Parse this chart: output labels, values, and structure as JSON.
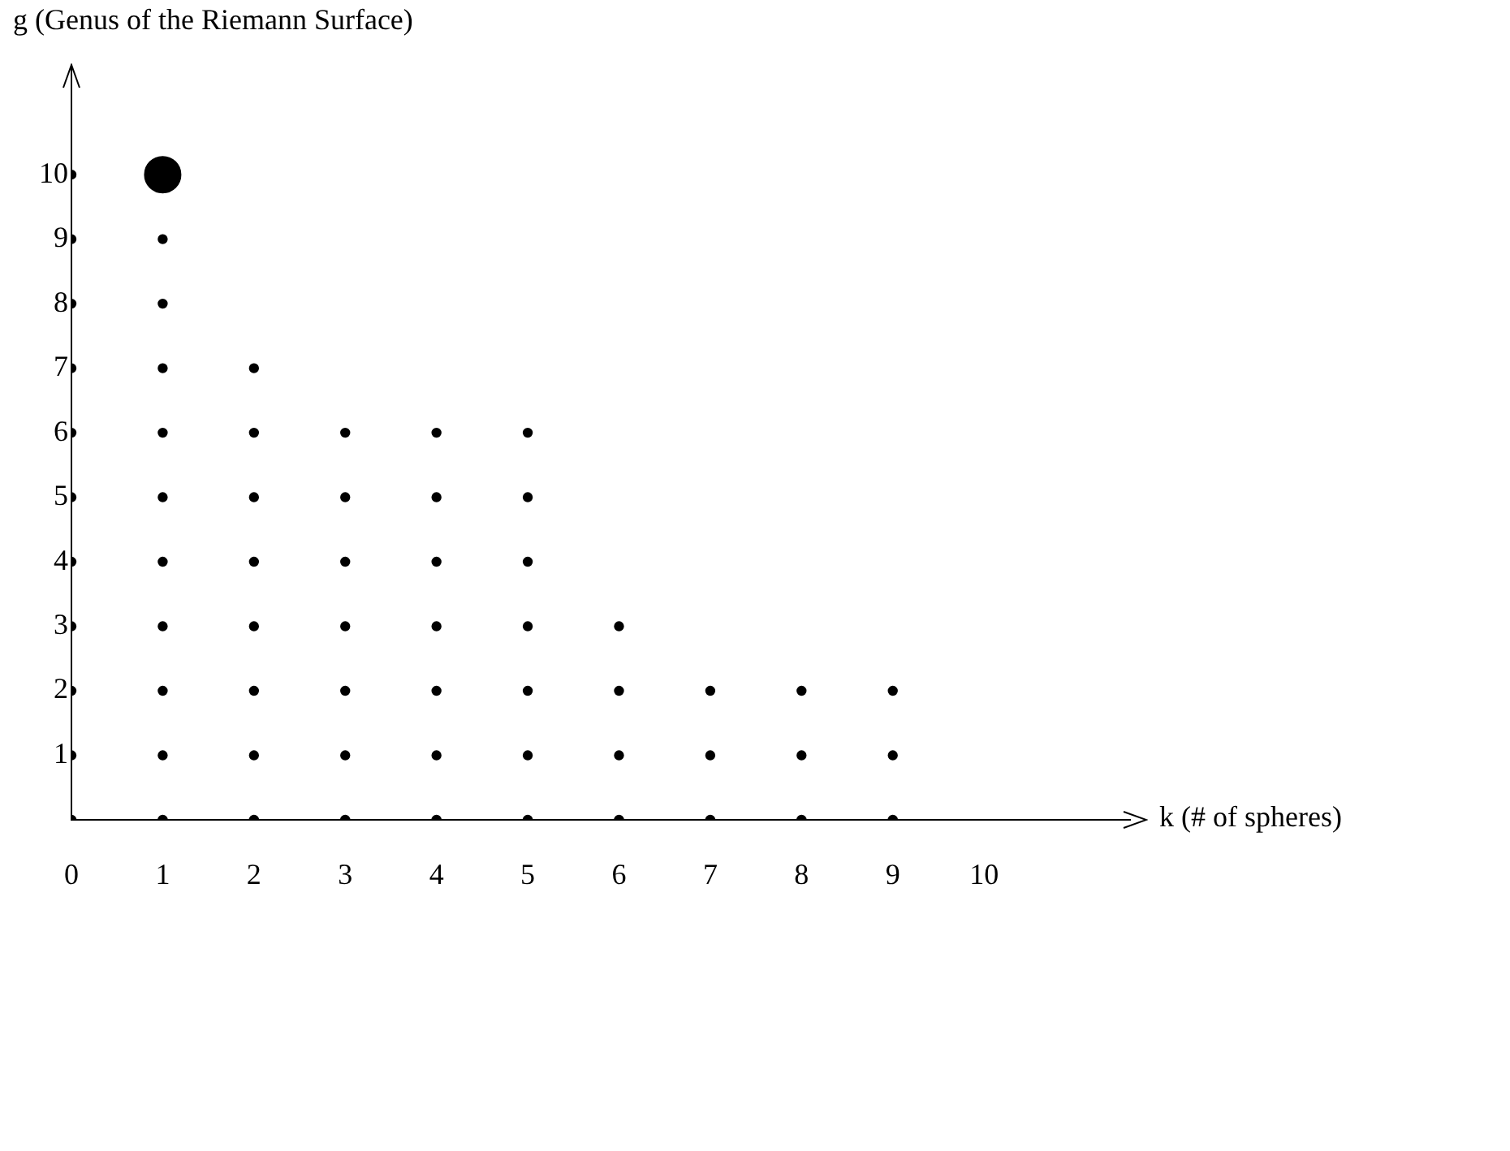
{
  "chart_data": {
    "type": "scatter",
    "xlabel": "k (# of spheres)",
    "ylabel": "g (Genus of the Riemann Surface)",
    "xlim": [
      0,
      11.6
    ],
    "ylim": [
      0,
      11.7
    ],
    "xticks": [
      0,
      1,
      2,
      3,
      4,
      5,
      6,
      7,
      8,
      9,
      10
    ],
    "yticks": [
      1,
      2,
      3,
      4,
      5,
      6,
      7,
      8,
      9,
      10
    ],
    "grid": false,
    "legend": false,
    "marker": "circle",
    "series": [
      {
        "color": "#000000",
        "x": [
          0,
          0,
          0,
          0,
          0,
          0,
          0,
          0,
          0,
          0,
          0,
          1,
          1,
          1,
          1,
          1,
          1,
          1,
          1,
          1,
          1,
          2,
          2,
          2,
          2,
          2,
          2,
          2,
          2,
          3,
          3,
          3,
          3,
          3,
          3,
          3,
          4,
          4,
          4,
          4,
          4,
          4,
          4,
          5,
          5,
          5,
          5,
          5,
          5,
          5,
          6,
          6,
          6,
          6,
          7,
          7,
          7,
          8,
          8,
          8,
          9,
          9,
          9
        ],
        "values": [
          0,
          1,
          2,
          3,
          4,
          5,
          6,
          7,
          8,
          9,
          10,
          0,
          1,
          2,
          3,
          4,
          5,
          6,
          7,
          8,
          9,
          0,
          1,
          2,
          3,
          4,
          5,
          6,
          7,
          0,
          1,
          2,
          3,
          4,
          5,
          6,
          0,
          1,
          2,
          3,
          4,
          5,
          6,
          0,
          1,
          2,
          3,
          4,
          5,
          6,
          0,
          1,
          2,
          3,
          0,
          1,
          2,
          0,
          1,
          2,
          0,
          1,
          2
        ]
      },
      {
        "color": "#000000",
        "x": [
          1
        ],
        "values": [
          10
        ]
      }
    ]
  }
}
